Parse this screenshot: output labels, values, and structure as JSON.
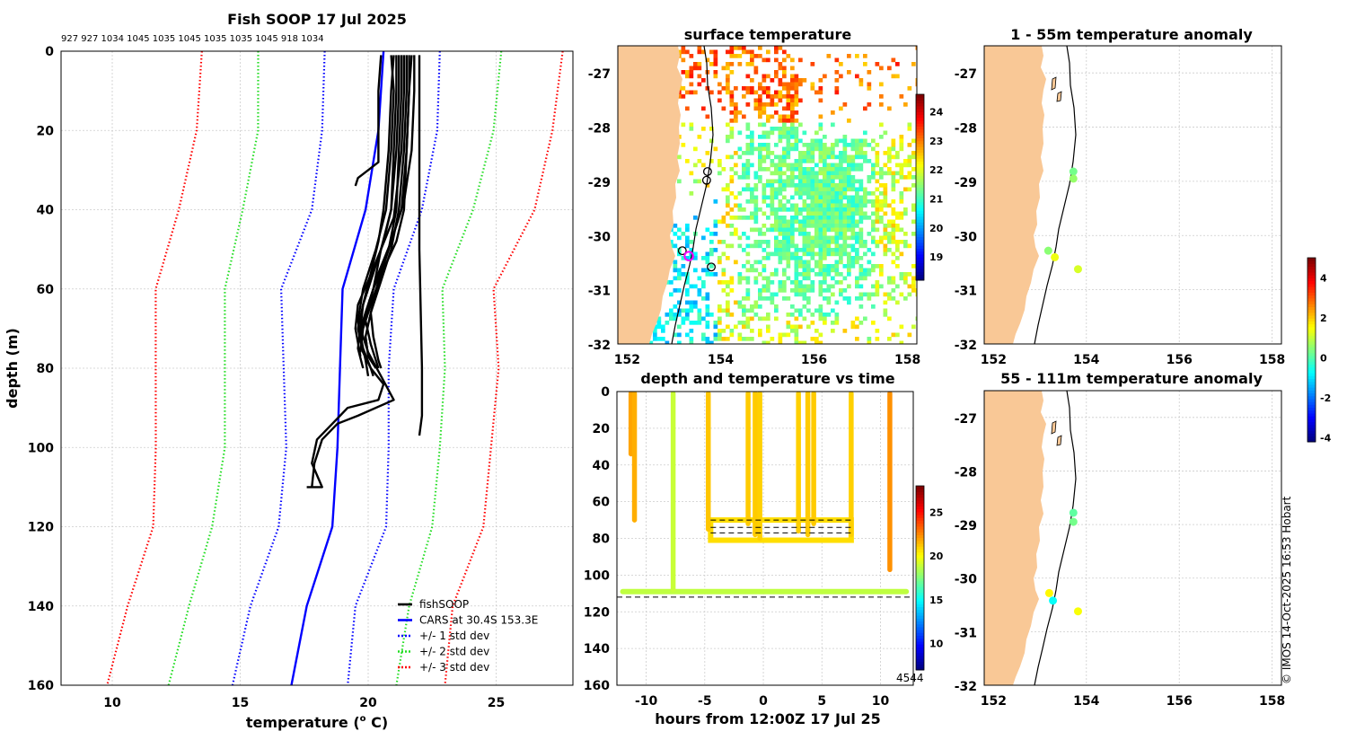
{
  "colors": {
    "fishsoop": "#000000",
    "cars": "#0000ff",
    "std1": "#0000ff",
    "std2": "#22dd22",
    "std3": "#ff0000",
    "land": "#f9c896",
    "grid": "#cccccc"
  },
  "chart_data": [
    {
      "id": "profile",
      "type": "line",
      "title": "Fish SOOP 17 Jul 2025",
      "top_labels": "927 927 1034 1045 1035 1045 1035 1035 1045 918 1034",
      "xlabel": "temperature (",
      "xlabel_sup": "o",
      "xlabel_tail": " C)",
      "ylabel": "depth (m)",
      "xlim": [
        8,
        28
      ],
      "ylim": [
        0,
        160
      ],
      "xticks": [
        10,
        15,
        20,
        25
      ],
      "yticks": [
        0,
        20,
        40,
        60,
        80,
        100,
        120,
        140,
        160
      ],
      "legend": [
        {
          "label": "fishSOOP",
          "style": "solid",
          "color": "#000000"
        },
        {
          "label": "CARS at 30.4S 153.3E",
          "style": "solid",
          "color": "#0000ff"
        },
        {
          "label": "+/- 1 std dev",
          "style": "dotted",
          "color": "#0000ff"
        },
        {
          "label": "+/- 2 std dev",
          "style": "dotted",
          "color": "#22dd22"
        },
        {
          "label": "+/- 3 std dev",
          "style": "dotted",
          "color": "#ff0000"
        }
      ],
      "cars": {
        "depth": [
          0,
          20,
          40,
          60,
          80,
          100,
          120,
          140,
          160
        ],
        "temp": [
          20.6,
          20.4,
          19.9,
          19.0,
          18.9,
          18.8,
          18.6,
          17.6,
          17.0
        ]
      },
      "std_offsets": [
        [
          -2.3,
          -2.2,
          -2.1,
          -2.4,
          -2.2,
          -2.0,
          -2.1,
          -2.2,
          -2.3
        ],
        [
          4.9,
          4.7,
          4.8,
          4.6,
          4.5,
          4.4,
          4.7,
          4.6,
          4.8
        ],
        [
          7.1,
          7.1,
          7.3,
          7.3,
          7.2,
          7.1,
          7.0,
          7.0,
          7.2
        ]
      ],
      "std_positive": [
        [
          2.2,
          2.3,
          2.2,
          2.0,
          1.9,
          2.0,
          2.1,
          1.9,
          2.2
        ],
        [
          4.6,
          4.5,
          4.2,
          3.9,
          4.1,
          4.0,
          3.9,
          4.0,
          4.1
        ],
        [
          7.0,
          6.8,
          6.6,
          5.9,
          6.2,
          6.0,
          5.9,
          5.7,
          6.0
        ]
      ],
      "fishsoop": [
        {
          "temp": [
            20.9,
            21.0,
            20.9,
            20.7,
            20.3,
            19.8,
            19.6,
            19.8,
            20.1,
            20.2
          ],
          "depth": [
            1,
            10,
            25,
            40,
            50,
            60,
            68,
            75,
            80,
            82
          ]
        },
        {
          "temp": [
            21.1,
            21.1,
            21.0,
            20.9,
            20.5,
            20.2,
            19.9,
            20.1,
            20.3,
            20.4
          ],
          "depth": [
            1,
            10,
            25,
            40,
            50,
            60,
            68,
            74,
            78,
            80
          ]
        },
        {
          "temp": [
            21.3,
            21.3,
            21.2,
            21.1,
            20.8,
            20.4,
            20.1,
            20.2,
            20.4,
            20.5
          ],
          "depth": [
            1,
            10,
            25,
            40,
            50,
            58,
            66,
            72,
            78,
            80
          ]
        },
        {
          "temp": [
            21.5,
            21.5,
            21.4,
            21.2,
            20.9,
            20.5,
            20.1,
            19.9,
            20.0,
            20.3
          ],
          "depth": [
            1,
            10,
            25,
            40,
            50,
            58,
            66,
            72,
            77,
            80
          ]
        },
        {
          "temp": [
            21.6,
            21.6,
            21.5,
            21.4,
            21.1,
            20.6,
            20.2,
            19.8,
            19.7
          ],
          "depth": [
            1,
            10,
            25,
            40,
            48,
            55,
            62,
            70,
            76
          ]
        },
        {
          "temp": [
            21.7,
            21.6,
            21.5,
            21.3,
            20.9,
            20.4,
            20.0,
            19.7,
            19.6,
            19.8
          ],
          "depth": [
            1,
            10,
            25,
            40,
            48,
            56,
            64,
            70,
            75,
            80
          ]
        },
        {
          "temp": [
            21.4,
            21.4,
            21.3,
            21.0,
            20.5,
            20.0,
            19.6,
            19.5,
            19.7
          ],
          "depth": [
            1,
            10,
            25,
            42,
            50,
            58,
            64,
            70,
            77
          ]
        },
        {
          "temp": [
            21.8,
            21.8,
            21.7,
            21.4,
            21.0,
            20.6,
            20.2,
            19.9,
            19.7,
            19.9,
            20.0
          ],
          "depth": [
            1,
            10,
            25,
            38,
            46,
            54,
            60,
            66,
            72,
            78,
            82
          ]
        },
        {
          "temp": [
            21.2,
            21.2,
            21.1,
            20.9,
            20.6,
            20.2,
            19.8,
            19.6,
            19.8,
            20.1,
            20.6,
            20.4,
            19.2,
            18.6,
            18.0,
            17.8,
            18.2,
            17.6
          ],
          "depth": [
            1,
            10,
            25,
            40,
            48,
            56,
            64,
            70,
            76,
            80,
            84,
            88,
            90,
            94,
            98,
            104,
            110,
            110
          ]
        },
        {
          "temp": [
            21.0,
            20.9,
            20.8,
            20.6,
            20.4,
            20.1,
            19.8,
            19.7,
            20.0,
            20.5,
            21.0,
            19.6,
            18.8,
            18.2,
            17.9,
            17.8
          ],
          "depth": [
            1,
            10,
            25,
            40,
            48,
            56,
            64,
            70,
            76,
            82,
            88,
            92,
            94,
            98,
            104,
            110
          ]
        },
        {
          "temp": [
            20.5,
            20.4,
            20.4,
            20.0,
            19.8,
            19.6,
            19.5
          ],
          "depth": [
            1,
            10,
            28,
            30,
            31,
            32,
            34
          ]
        },
        {
          "temp": [
            22.0,
            22.0,
            22.0,
            22.1,
            22.1,
            22.0
          ],
          "depth": [
            1,
            20,
            50,
            80,
            92,
            97
          ]
        }
      ]
    },
    {
      "id": "surface",
      "type": "heatmap",
      "title": "surface temperature",
      "xlim": [
        151.8,
        158.2
      ],
      "ylim": [
        -32,
        -26.5
      ],
      "xticks": [
        152,
        154,
        156,
        158
      ],
      "yticks": [
        -27,
        -28,
        -29,
        -30,
        -31,
        -32
      ],
      "colorbar": {
        "min": 18.2,
        "max": 24.6,
        "ticks": [
          19,
          20,
          21,
          22,
          23,
          24
        ]
      },
      "stations": [
        {
          "lon": 153.72,
          "lat": -28.82
        },
        {
          "lon": 153.7,
          "lat": -28.98
        },
        {
          "lon": 153.18,
          "lat": -30.28
        },
        {
          "lon": 153.8,
          "lat": -30.58
        }
      ],
      "highlight": {
        "lon": 153.32,
        "lat": -30.38,
        "color": "#ff00ff"
      }
    },
    {
      "id": "depthtime",
      "type": "scatter",
      "title": "depth and temperature vs time",
      "xlabel": "hours from 12:00Z 17 Jul 25",
      "xlim": [
        -12.5,
        12.8
      ],
      "ylim": [
        0,
        160
      ],
      "xticks": [
        -10,
        -5,
        0,
        5,
        10
      ],
      "yticks": [
        0,
        20,
        40,
        60,
        80,
        100,
        120,
        140,
        160
      ],
      "colorbar": {
        "min": 7.0,
        "max": 28.0,
        "ticks": [
          10,
          15,
          20,
          25
        ]
      },
      "corner_label": "4544",
      "dashed_depths": [
        112,
        70,
        74,
        77
      ],
      "casts": [
        {
          "hour": -11.3,
          "bottom": 34,
          "temp": 22.0
        },
        {
          "hour": -11.0,
          "bottom": 70,
          "temp": 21.8
        },
        {
          "hour": -7.7,
          "bottom": 108,
          "temp": 19.0
        },
        {
          "hour": -4.7,
          "bottom": 75,
          "temp": 21.3
        },
        {
          "hour": -1.3,
          "bottom": 72,
          "temp": 21.2
        },
        {
          "hour": -0.7,
          "bottom": 78,
          "temp": 21.2
        },
        {
          "hour": -0.3,
          "bottom": 80,
          "temp": 21.1
        },
        {
          "hour": 3.0,
          "bottom": 76,
          "temp": 21.1
        },
        {
          "hour": 3.8,
          "bottom": 78,
          "temp": 21.2
        },
        {
          "hour": 4.3,
          "bottom": 72,
          "temp": 21.2
        },
        {
          "hour": 7.5,
          "bottom": 78,
          "temp": 21.1
        },
        {
          "hour": 10.8,
          "bottom": 97,
          "temp": 22.4
        }
      ],
      "bottom_series": {
        "depth": 109,
        "temp": 18.8,
        "from": -12.0,
        "to": 12.2
      },
      "band": {
        "from": -4.5,
        "to": 7.5,
        "top": 70,
        "bottom": 81,
        "temp": 20.8
      }
    },
    {
      "id": "anom1",
      "type": "scatter",
      "title": "1 - 55m temperature anomaly",
      "xlim": [
        151.8,
        158.2
      ],
      "ylim": [
        -32,
        -26.5
      ],
      "xticks": [
        152,
        154,
        156,
        158
      ],
      "yticks": [
        -27,
        -28,
        -29,
        -30,
        -31,
        -32
      ],
      "points": [
        {
          "lon": 153.72,
          "lat": -28.82,
          "value": 0.3
        },
        {
          "lon": 153.72,
          "lat": -28.95,
          "value": 0.6
        },
        {
          "lon": 153.18,
          "lat": -30.28,
          "value": 0.5
        },
        {
          "lon": 153.32,
          "lat": -30.4,
          "value": 1.4
        },
        {
          "lon": 153.82,
          "lat": -30.62,
          "value": 1.2
        }
      ]
    },
    {
      "id": "anom2",
      "type": "scatter",
      "title": "55 - 111m temperature anomaly",
      "xlim": [
        151.8,
        158.2
      ],
      "ylim": [
        -32,
        -26.5
      ],
      "xticks": [
        152,
        154,
        156,
        158
      ],
      "yticks": [
        -27,
        -28,
        -29,
        -30,
        -31,
        -32
      ],
      "points": [
        {
          "lon": 153.72,
          "lat": -28.78,
          "value": 0.1
        },
        {
          "lon": 153.72,
          "lat": -28.95,
          "value": 0.3
        },
        {
          "lon": 153.2,
          "lat": -30.28,
          "value": 1.6
        },
        {
          "lon": 153.28,
          "lat": -30.42,
          "value": -0.7
        },
        {
          "lon": 153.82,
          "lat": -30.62,
          "value": 1.5
        }
      ]
    }
  ],
  "anomaly_colorbar": {
    "min": -4.2,
    "max": 5.0,
    "ticks": [
      -4,
      -2,
      0,
      2,
      4
    ]
  },
  "watermark": "© IMOS 14-Oct-2025 16:53 Hobart"
}
